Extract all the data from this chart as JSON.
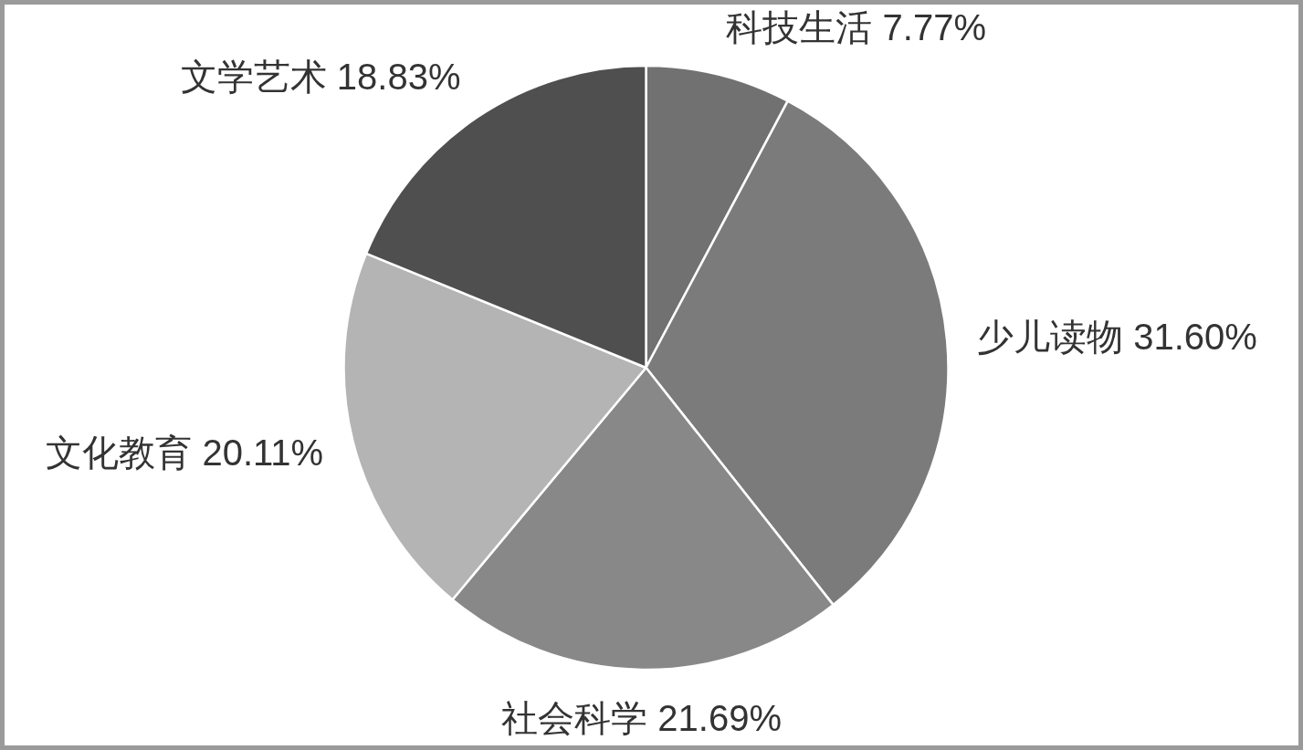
{
  "chart_data": {
    "type": "pie",
    "categories": [
      "科技生活",
      "少儿读物",
      "社会科学",
      "文化教育",
      "文学艺术"
    ],
    "values": [
      7.77,
      31.6,
      21.69,
      20.11,
      18.83
    ],
    "colors": [
      "#717171",
      "#7b7b7b",
      "#888888",
      "#b4b4b4",
      "#4f4f4f"
    ],
    "value_labels": [
      "7.77%",
      "31.60%",
      "21.69%",
      "20.11%",
      "18.83%"
    ]
  }
}
